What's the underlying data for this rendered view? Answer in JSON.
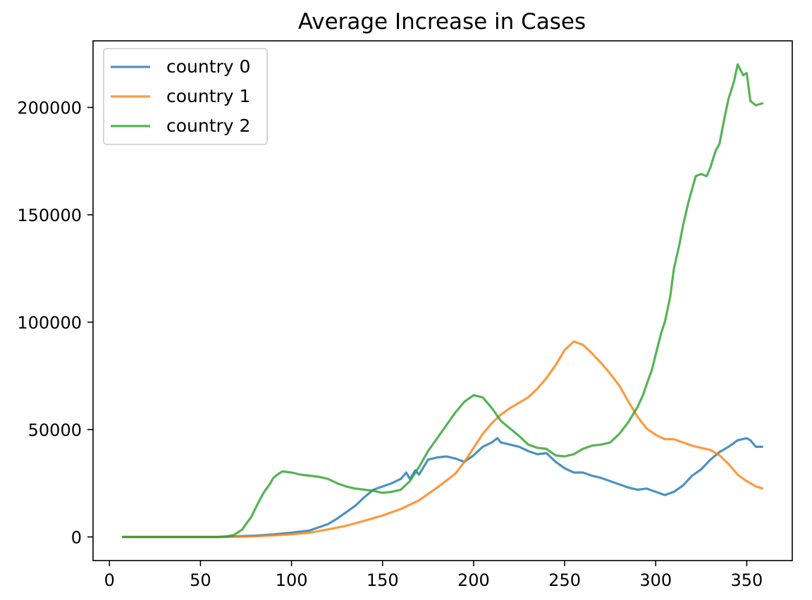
{
  "chart_data": {
    "type": "line",
    "title": "Average Increase in Cases",
    "xlabel": "",
    "ylabel": "",
    "xlim": [
      -9,
      375
    ],
    "ylim": [
      -11000,
      231000
    ],
    "xticks": [
      0,
      50,
      100,
      150,
      200,
      250,
      300,
      350
    ],
    "yticks": [
      0,
      50000,
      100000,
      150000,
      200000
    ],
    "grid": false,
    "legend": "upper left",
    "series": [
      {
        "name": "country 0",
        "color": "#1f77b4",
        "x": [
          7,
          20,
          40,
          60,
          70,
          80,
          90,
          100,
          110,
          115,
          120,
          125,
          130,
          135,
          140,
          145,
          150,
          155,
          160,
          163,
          165,
          168,
          170,
          175,
          180,
          185,
          190,
          195,
          200,
          205,
          210,
          213,
          215,
          220,
          225,
          230,
          235,
          240,
          245,
          250,
          255,
          260,
          265,
          270,
          275,
          280,
          285,
          290,
          295,
          300,
          305,
          310,
          315,
          320,
          325,
          330,
          335,
          340,
          345,
          350,
          352,
          355,
          359
        ],
        "y": [
          0,
          0,
          0,
          0,
          300,
          600,
          1200,
          2000,
          3000,
          4500,
          6000,
          8500,
          11500,
          14500,
          18500,
          22000,
          23500,
          25000,
          27000,
          30000,
          27000,
          31000,
          29000,
          36000,
          37000,
          37500,
          36500,
          35000,
          38000,
          42000,
          44000,
          46000,
          44000,
          43000,
          42000,
          40000,
          38500,
          39000,
          35000,
          32000,
          30000,
          30000,
          28500,
          27500,
          26000,
          24500,
          23000,
          22000,
          22500,
          21000,
          19500,
          21000,
          24000,
          28500,
          31500,
          36000,
          39500,
          42000,
          45000,
          46000,
          45000,
          42000,
          42000
        ]
      },
      {
        "name": "country 1",
        "color": "#ff7f0e",
        "x": [
          7,
          20,
          40,
          60,
          70,
          80,
          90,
          100,
          110,
          120,
          130,
          140,
          150,
          160,
          170,
          180,
          190,
          195,
          200,
          205,
          210,
          215,
          220,
          225,
          230,
          235,
          240,
          245,
          250,
          255,
          260,
          265,
          270,
          275,
          280,
          285,
          290,
          295,
          300,
          305,
          310,
          315,
          320,
          325,
          330,
          335,
          340,
          345,
          350,
          355,
          359
        ],
        "y": [
          0,
          0,
          0,
          0,
          100,
          300,
          700,
          1200,
          2000,
          3500,
          5200,
          7500,
          10000,
          13000,
          17000,
          23000,
          29500,
          35000,
          41500,
          48000,
          53000,
          57000,
          60000,
          62500,
          65000,
          69000,
          74000,
          80000,
          87000,
          91000,
          89500,
          85500,
          81000,
          76000,
          70500,
          63000,
          56000,
          50500,
          47500,
          45500,
          45500,
          44000,
          42500,
          41500,
          40500,
          38000,
          34000,
          29000,
          26000,
          23500,
          22500
        ]
      },
      {
        "name": "country 2",
        "color": "#2ca02c",
        "x": [
          7,
          20,
          40,
          60,
          65,
          68,
          70,
          73,
          75,
          78,
          80,
          83,
          85,
          88,
          90,
          93,
          95,
          100,
          105,
          110,
          115,
          120,
          125,
          130,
          135,
          140,
          145,
          150,
          155,
          160,
          165,
          170,
          175,
          180,
          185,
          190,
          195,
          200,
          205,
          210,
          215,
          220,
          225,
          230,
          235,
          240,
          245,
          250,
          255,
          260,
          265,
          270,
          275,
          280,
          285,
          290,
          293,
          295,
          298,
          300,
          303,
          305,
          308,
          310,
          313,
          315,
          318,
          320,
          322,
          325,
          328,
          330,
          333,
          335,
          338,
          340,
          343,
          345,
          348,
          350,
          352,
          355,
          359
        ],
        "y": [
          0,
          0,
          0,
          0,
          300,
          800,
          1800,
          3500,
          6000,
          9500,
          13000,
          18000,
          21000,
          24500,
          27500,
          29500,
          30500,
          30000,
          29000,
          28500,
          28000,
          27000,
          25000,
          23500,
          22500,
          22000,
          21500,
          20500,
          21000,
          22000,
          26000,
          32500,
          40000,
          46000,
          52000,
          58000,
          63000,
          66000,
          65000,
          60000,
          54000,
          50500,
          47000,
          43000,
          41500,
          41000,
          38000,
          37500,
          38500,
          41000,
          42500,
          43000,
          44000,
          48000,
          53500,
          60500,
          66000,
          71000,
          78000,
          85000,
          95000,
          100000,
          112000,
          125000,
          136000,
          145000,
          156000,
          162000,
          168000,
          169000,
          168000,
          172000,
          180000,
          183000,
          196000,
          204000,
          212000,
          220000,
          215000,
          216000,
          203000,
          201000,
          202000
        ]
      }
    ]
  }
}
